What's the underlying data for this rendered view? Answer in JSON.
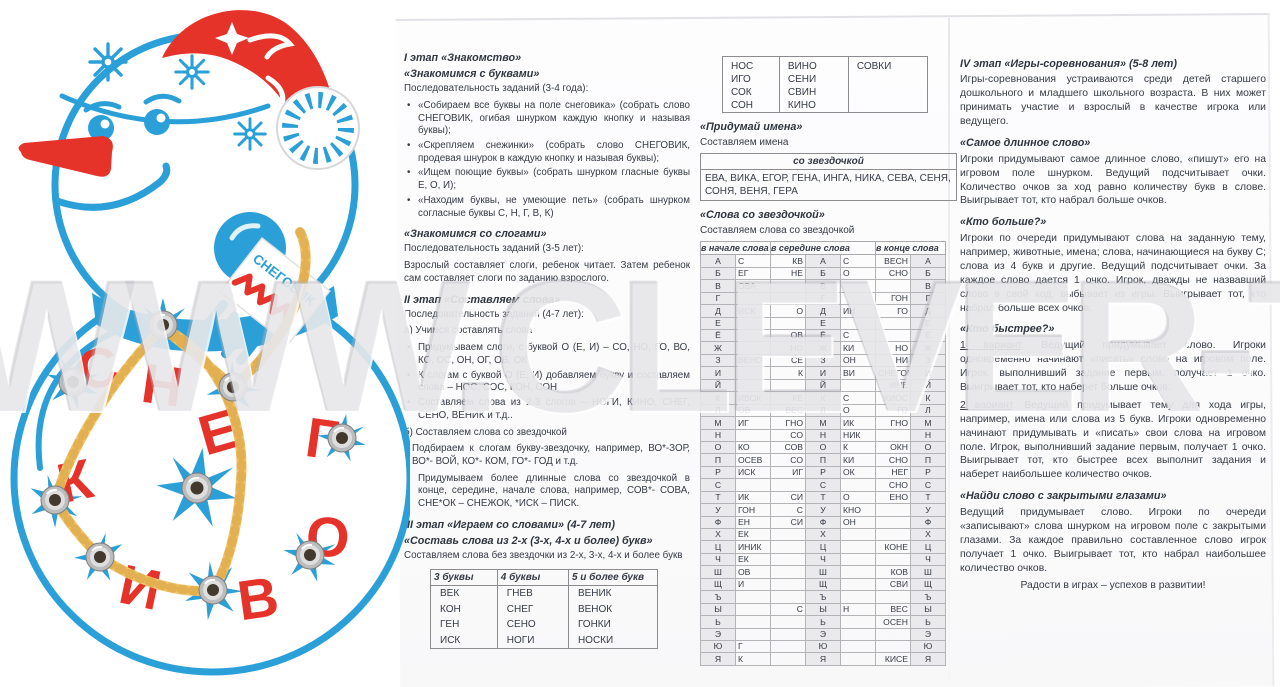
{
  "watermark": "WWW.CLEVER-TOY.RU",
  "snowman": {
    "scarf_text": "СНЕГОВИК",
    "letters": [
      "С",
      "Н",
      "Е",
      "Г",
      "О",
      "В",
      "И",
      "К"
    ]
  },
  "col1": {
    "s1_h1": "I этап «Знакомство»",
    "s1_h2": "«Знакомимся с буквами»",
    "s1_intro": "Последовательность заданий (3-4 года):",
    "s1_b1": "«Собираем все буквы на поле снеговика» (собрать слово СНЕГОВИК, огибая шнурком каждую кнопку и называя буквы);",
    "s1_b2": "«Скрепляем снежинки» (собрать слово СНЕГОВИК, продевая шнурок в каждую кнопку и называя буквы);",
    "s1_b3": "«Ищем поющие буквы» (собрать шнурком гласные буквы Е, О, И);",
    "s1_b4": "«Находим буквы, не умеющие петь» (собрать шнурком согласные буквы С, Н, Г, В, К)",
    "s2_h": "«Знакомимся со слогами»",
    "s2_intro": "Последовательность заданий (3-5 лет):",
    "s2_text": "Взрослый составляет слоги, ребенок читает. Затем ребенок сам составляет слоги по заданию взрослого.",
    "s3_h": "II этап «Составляем слова»",
    "s3_intro": "Последовательность заданий (4-7 лет):",
    "s3_a": "а) Учимся составлять слова",
    "s3_b1": "Придумываем слоги, с буквой О (Е, И) – СО, НО, ГО, ВО, КО, ОС, ОН, ОГ, ОВ, ОК",
    "s3_b2": "К слогам с буквой О (Е, И) добавляем букву и составляем слова – НОС, СОС, КОН, СОН",
    "s3_b3": "Составляем слова из 2-3 слогов – НОГИ, КИНО, СНЕГ, СЕНО, ВЕНИК и т.д..",
    "s3_b": "б) Составляем слова со звездочкой",
    "s3_p1": "Подбираем к слогам букву-звездочку, например, ВО*-ЗОР, ВО*- ВОЙ, КО*- КОМ, ГО*- ГОД и т.д.",
    "s3_b4": "Придумываем более длинные слова со звездочкой в конце, середине, начале слова, например, СОВ*- СОВА, СНЕ*ОК – СНЕЖОК, *ИСК – ПИСК.",
    "s4_h1": "III этап «Играем со словами» (4-7 лет)",
    "s4_h2": "«Составь слова из 2-х (3-х, 4-х и более) букв»",
    "s4_text": "Составляем слова без звездочки из 2-х, 3-х, 4-х и более букв",
    "words_table": {
      "headers": [
        "3 буквы",
        "4 буквы",
        "5 и более букв"
      ],
      "rows": [
        [
          "ВЕК",
          "ГНЕВ",
          "ВЕНИК"
        ],
        [
          "КОН",
          "СНЕГ",
          "ВЕНОК"
        ],
        [
          "ГЕН",
          "СЕНО",
          "ГОНКИ"
        ],
        [
          "ИСК",
          "НОГИ",
          "НОСКИ"
        ]
      ]
    }
  },
  "col2": {
    "cont_table_rows": [
      [
        "НОС",
        "ВИНО",
        "СОВКИ"
      ],
      [
        "ИГО",
        "СЕНИ",
        ""
      ],
      [
        "СОК",
        "СВИН",
        ""
      ],
      [
        "СОН",
        "КИНО",
        ""
      ]
    ],
    "names_h": "«Придумай имена»",
    "names_sub": "Составляем имена",
    "names_header": "со звездочкой",
    "names_body": "ЕВА,  ВИКА,  ЕГОР,  ГЕНА,  ИНГА,  НИКА,  СЕВА,  СЕНЯ, СОНЯ, ВЕНЯ, ГЕРА",
    "star_h": "«Слова со звездочкой»",
    "star_sub": "Составляем слова со звездочкой",
    "star_headers": [
      "в начале слова",
      "в середине слова",
      "в конце слова"
    ],
    "star_rows": [
      [
        "А",
        "С",
        "КВ",
        "А",
        "С",
        "ВЕСН",
        "А"
      ],
      [
        "Б",
        "ЕГ",
        "НЕ",
        "Б",
        "О",
        "СНО",
        "Б"
      ],
      [
        "В",
        "ОВА",
        "",
        "В",
        "",
        "",
        "В"
      ],
      [
        "Г",
        "",
        "",
        "Г",
        "",
        "ГОН",
        "Г"
      ],
      [
        "Д",
        "ИСК",
        "О",
        "Д",
        "ИН",
        "ГО",
        "Д"
      ],
      [
        "Е",
        "",
        "",
        "Е",
        "",
        "",
        "Е"
      ],
      [
        "Ё",
        "",
        "ОВ",
        "Ё",
        "С",
        "",
        "Ё"
      ],
      [
        "Ж",
        "",
        "НО",
        "Ж",
        "КИ",
        "НО",
        "Ж"
      ],
      [
        "З",
        "ВЕНО",
        "СЕ",
        "З",
        "ОН",
        "НИ",
        "З"
      ],
      [
        "И",
        "",
        "К",
        "И",
        "ВИ",
        "СНЕГОВИК",
        "И"
      ],
      [
        "Й",
        "",
        "",
        "Й",
        "",
        "ИНЕ",
        "Й"
      ],
      [
        "К",
        "ИВОК",
        "КЕ",
        "К",
        "С",
        "КИОС",
        "К"
      ],
      [
        "Л",
        "ОВ",
        "ВЕС",
        "Л",
        "О",
        "ГО",
        "Л"
      ],
      [
        "М",
        "ИГ",
        "ГНО",
        "М",
        "ИК",
        "ГНО",
        "М"
      ],
      [
        "Н",
        "",
        "СО",
        "Н",
        "НИК",
        "",
        "Н"
      ],
      [
        "О",
        "КО",
        "СОВ",
        "О",
        "К",
        "ОКН",
        "О"
      ],
      [
        "П",
        "ОСЕВ",
        "СО",
        "П",
        "КИ",
        "СНО",
        "П"
      ],
      [
        "Р",
        "ИСК",
        "ИГ",
        "Р",
        "ОК",
        "НЕГ",
        "Р"
      ],
      [
        "С",
        "",
        "",
        "С",
        "",
        "СНО",
        "С"
      ],
      [
        "Т",
        "ИК",
        "СИ",
        "Т",
        "О",
        "ЕНО",
        "Т"
      ],
      [
        "У",
        "ГОН",
        "С",
        "У",
        "КНО",
        "",
        "У"
      ],
      [
        "Ф",
        "ЕН",
        "СИ",
        "Ф",
        "ОН",
        "",
        "Ф"
      ],
      [
        "Х",
        "ЕК",
        "",
        "Х",
        "",
        "",
        "Х"
      ],
      [
        "Ц",
        "ИНИК",
        "",
        "Ц",
        "",
        "КОНЕ",
        "Ц"
      ],
      [
        "Ч",
        "ЕК",
        "",
        "Ч",
        "",
        "",
        "Ч"
      ],
      [
        "Ш",
        "ОВ",
        "",
        "Ш",
        "",
        "КОВ",
        "Ш"
      ],
      [
        "Щ",
        "И",
        "",
        "Щ",
        "",
        "СВИ",
        "Щ"
      ],
      [
        "Ъ",
        "",
        "",
        "Ъ",
        "",
        "",
        "Ъ"
      ],
      [
        "Ы",
        "",
        "С",
        "Ы",
        "Н",
        "ВЕС",
        "Ы"
      ],
      [
        "Ь",
        "",
        "",
        "Ь",
        "",
        "ОСЕН",
        "Ь"
      ],
      [
        "Э",
        "",
        "",
        "Э",
        "",
        "",
        "Э"
      ],
      [
        "Ю",
        "Г",
        "",
        "Ю",
        "",
        "",
        "Ю"
      ],
      [
        "Я",
        "К",
        "",
        "Я",
        "",
        "КИСЕ",
        "Я"
      ]
    ]
  },
  "col3": {
    "h": "IV этап «Игры-соревнования» (5-8 лет)",
    "intro": "Игры-соревнования устраиваются среди детей старшего дошкольного и младшего школьного возраста. В них может принимать участие и взрослый в качестве игрока или ведущего.",
    "g1_h": "«Самое длинное слово»",
    "g1_p": "Игроки придумывают самое длинное слово, «пишут» его на игровом поле шнурком. Ведущий подсчитывает очки. Количество очков за ход равно количеству букв в слове. Выигрывает тот, кто набрал больше очков.",
    "g2_h": "«Кто больше?»",
    "g2_p": "Игроки по очереди придумывают слова на заданную тему, например, животные, имена; слова, начинающиеся на букву С; слова из 4 букв и другие. Ведущий подсчитывает очки. За каждое слово дается 1 очко. Игрок, дважды не назвавший слово в свой ход, выбывает из игры. Выигрывает тот, кто набрал больше всех очков.",
    "g3_h": "«Кто быстрее?»",
    "g3_v1_label": "1 вариант",
    "g3_v1": ". Ведущий придумывает слово. Игроки одновременно начинают «писать» слово на игровом поле. Игрок, выполнивший задание первым, получает 1 очко. Выигрывает тот, кто наберет больше очков.",
    "g3_v2_label": "2 вариант",
    "g3_v2": ". Ведущий придумывает тему для хода игры, например, имена или слова из 5 букв. Игроки одновременно начинают придумывать и «писать» свои слова на игровом поле. Игрок, выполнивший задание первым, получает 1 очко. Выигрывает тот, кто быстрее всех выполнит задания и наберет наибольшее количество очков.",
    "g4_h": "«Найди слово с закрытыми глазами»",
    "g4_p": "Ведущий придумывает слово. Игроки по очереди «записывают» слова шнурком на игровом поле с закрытыми глазами. За каждое правильно составленное слово игрок получает 1 очко. Выигрывает тот, кто набрал наибольшее количество очков.",
    "footer": "Радости в играх – успехов в развитии!"
  },
  "colors": {
    "toy_blue": "#2b9fd8",
    "toy_red": "#e5332a",
    "rope_yellow": "#f1c368",
    "text": "#363b45"
  }
}
